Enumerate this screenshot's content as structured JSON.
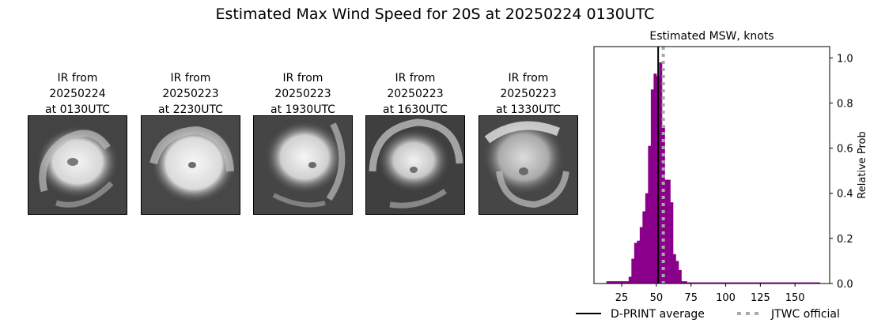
{
  "suptitle": "Estimated Max Wind Speed for 20S at 20250224 0130UTC",
  "thumbnails": [
    {
      "line1": "IR from",
      "line2": "20250224",
      "line3": "at 0130UTC"
    },
    {
      "line1": "IR from",
      "line2": "20250223",
      "line3": "at 2230UTC"
    },
    {
      "line1": "IR from",
      "line2": "20250223",
      "line3": "at 1930UTC"
    },
    {
      "line1": "IR from",
      "line2": "20250223",
      "line3": "at 1630UTC"
    },
    {
      "line1": "IR from",
      "line2": "20250223",
      "line3": "at 1330UTC"
    }
  ],
  "chart_data": {
    "type": "bar",
    "title": "Estimated MSW, knots",
    "xlabel": "",
    "ylabel": "Relative Prob",
    "y_axis_side": "right",
    "xlim": [
      5,
      175
    ],
    "ylim": [
      0,
      1.05
    ],
    "xticks": [
      25,
      50,
      75,
      100,
      125,
      150
    ],
    "yticks": [
      0.0,
      0.2,
      0.4,
      0.6,
      0.8,
      1.0
    ],
    "bin_width": 2,
    "bar_color": "#8b008b",
    "bins": [
      {
        "x": 15,
        "value": 0.01
      },
      {
        "x": 17,
        "value": 0.01
      },
      {
        "x": 19,
        "value": 0.01
      },
      {
        "x": 21,
        "value": 0.01
      },
      {
        "x": 23,
        "value": 0.01
      },
      {
        "x": 25,
        "value": 0.01
      },
      {
        "x": 27,
        "value": 0.01
      },
      {
        "x": 29,
        "value": 0.01
      },
      {
        "x": 31,
        "value": 0.03
      },
      {
        "x": 33,
        "value": 0.11
      },
      {
        "x": 35,
        "value": 0.18
      },
      {
        "x": 37,
        "value": 0.19
      },
      {
        "x": 39,
        "value": 0.25
      },
      {
        "x": 41,
        "value": 0.32
      },
      {
        "x": 43,
        "value": 0.4
      },
      {
        "x": 45,
        "value": 0.61
      },
      {
        "x": 47,
        "value": 0.86
      },
      {
        "x": 49,
        "value": 0.93
      },
      {
        "x": 51,
        "value": 0.92
      },
      {
        "x": 53,
        "value": 0.98
      },
      {
        "x": 55,
        "value": 0.7
      },
      {
        "x": 57,
        "value": 0.46
      },
      {
        "x": 59,
        "value": 0.46
      },
      {
        "x": 61,
        "value": 0.36
      },
      {
        "x": 63,
        "value": 0.13
      },
      {
        "x": 65,
        "value": 0.1
      },
      {
        "x": 67,
        "value": 0.06
      },
      {
        "x": 69,
        "value": 0.01
      },
      {
        "x": 71,
        "value": 0.01
      },
      {
        "x": 73,
        "value": 0.005
      },
      {
        "x": 75,
        "value": 0.005
      },
      {
        "x": 77,
        "value": 0.005
      },
      {
        "x": 79,
        "value": 0.005
      },
      {
        "x": 81,
        "value": 0.005
      },
      {
        "x": 83,
        "value": 0.005
      },
      {
        "x": 85,
        "value": 0.005
      },
      {
        "x": 87,
        "value": 0.005
      },
      {
        "x": 89,
        "value": 0.005
      },
      {
        "x": 91,
        "value": 0.005
      },
      {
        "x": 93,
        "value": 0.005
      },
      {
        "x": 95,
        "value": 0.005
      },
      {
        "x": 97,
        "value": 0.005
      },
      {
        "x": 99,
        "value": 0.005
      },
      {
        "x": 101,
        "value": 0.005
      },
      {
        "x": 103,
        "value": 0.005
      },
      {
        "x": 105,
        "value": 0.005
      },
      {
        "x": 107,
        "value": 0.005
      },
      {
        "x": 109,
        "value": 0.005
      },
      {
        "x": 111,
        "value": 0.005
      },
      {
        "x": 113,
        "value": 0.005
      },
      {
        "x": 115,
        "value": 0.005
      },
      {
        "x": 117,
        "value": 0.005
      },
      {
        "x": 119,
        "value": 0.005
      },
      {
        "x": 121,
        "value": 0.005
      },
      {
        "x": 123,
        "value": 0.005
      },
      {
        "x": 125,
        "value": 0.005
      },
      {
        "x": 127,
        "value": 0.005
      },
      {
        "x": 129,
        "value": 0.005
      },
      {
        "x": 131,
        "value": 0.005
      },
      {
        "x": 133,
        "value": 0.005
      },
      {
        "x": 135,
        "value": 0.005
      },
      {
        "x": 137,
        "value": 0.005
      },
      {
        "x": 139,
        "value": 0.005
      },
      {
        "x": 141,
        "value": 0.005
      },
      {
        "x": 143,
        "value": 0.005
      },
      {
        "x": 145,
        "value": 0.005
      },
      {
        "x": 147,
        "value": 0.005
      },
      {
        "x": 149,
        "value": 0.005
      },
      {
        "x": 151,
        "value": 0.005
      },
      {
        "x": 153,
        "value": 0.005
      },
      {
        "x": 155,
        "value": 0.005
      },
      {
        "x": 157,
        "value": 0.005
      },
      {
        "x": 159,
        "value": 0.005
      },
      {
        "x": 161,
        "value": 0.005
      },
      {
        "x": 163,
        "value": 0.005
      },
      {
        "x": 165,
        "value": 0.005
      },
      {
        "x": 167,
        "value": 0.005
      }
    ],
    "dprint_average": 51.3,
    "jtwc_official": 55,
    "legend_placement": "bottom-right",
    "legend": [
      {
        "label": "D-PRINT average",
        "style": "solid",
        "color": "#000000"
      },
      {
        "label": "JTWC official",
        "style": "dotted",
        "color": "#aaaaaa"
      }
    ]
  }
}
